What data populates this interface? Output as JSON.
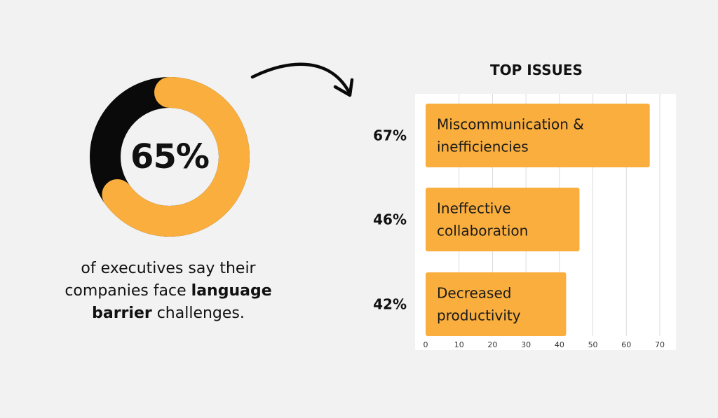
{
  "colors": {
    "accent": "#f9ae3d",
    "dark": "#0a0a0a",
    "background": "#f2f2f2"
  },
  "headline": {
    "value": "65%",
    "fraction": 0.65,
    "caption_before": "of executives say their companies face ",
    "caption_bold": "language barrier",
    "caption_after": " challenges."
  },
  "chart_data": {
    "type": "bar",
    "orientation": "horizontal",
    "title": "TOP ISSUES",
    "categories": [
      [
        "Miscommunication &",
        "inefficiencies"
      ],
      [
        "Ineffective",
        "collaboration"
      ],
      [
        "Decreased",
        "productivity"
      ]
    ],
    "values": [
      67,
      46,
      42
    ],
    "value_labels": [
      "67%",
      "46%",
      "42%"
    ],
    "xlim": [
      0,
      70
    ],
    "xticks": [
      0,
      10,
      20,
      30,
      40,
      50,
      60,
      70
    ],
    "grid": true,
    "legend": "none"
  }
}
